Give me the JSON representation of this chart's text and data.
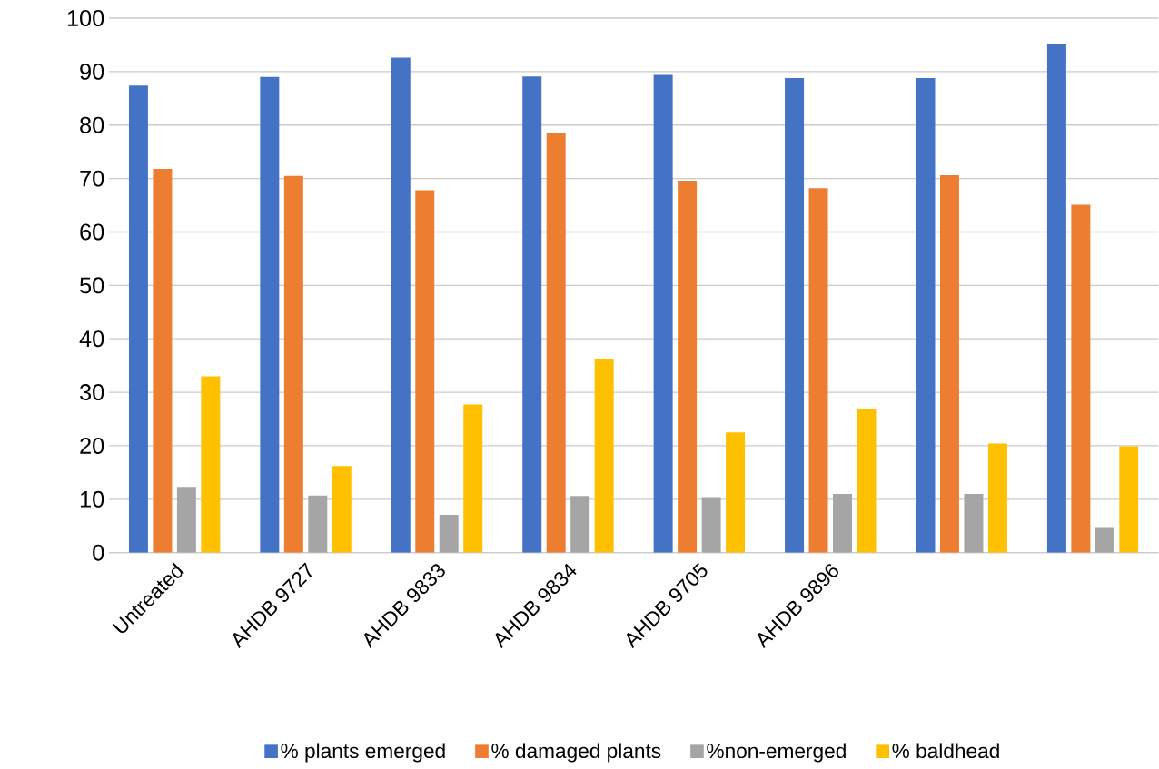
{
  "chart_data": {
    "type": "bar",
    "categories": [
      "Untreated",
      "AHDB 9727",
      "AHDB 9833",
      "AHDB 9834",
      "AHDB 9705",
      "AHDB 9896",
      null,
      null
    ],
    "series": [
      {
        "name": "% plants emerged",
        "color": "#4472c4",
        "values": [
          87.4,
          89.0,
          92.6,
          89.1,
          89.4,
          88.8,
          88.8,
          95.1
        ]
      },
      {
        "name": "% damaged plants",
        "color": "#ed7d31",
        "values": [
          71.8,
          70.5,
          67.8,
          78.5,
          69.6,
          68.2,
          70.6,
          65.1
        ]
      },
      {
        "name": "%non-emerged",
        "color": "#a5a5a5",
        "values": [
          12.3,
          10.7,
          7.1,
          10.6,
          10.4,
          11.0,
          11.0,
          4.6
        ]
      },
      {
        "name": "% baldhead",
        "color": "#ffc000",
        "values": [
          33.0,
          16.2,
          27.7,
          36.3,
          22.5,
          26.9,
          20.4,
          19.9
        ]
      }
    ],
    "ylim": [
      0,
      100
    ],
    "yticks": [
      0,
      10,
      20,
      30,
      40,
      50,
      60,
      70,
      80,
      90,
      100
    ],
    "grid": "y",
    "legend": "bottom"
  }
}
